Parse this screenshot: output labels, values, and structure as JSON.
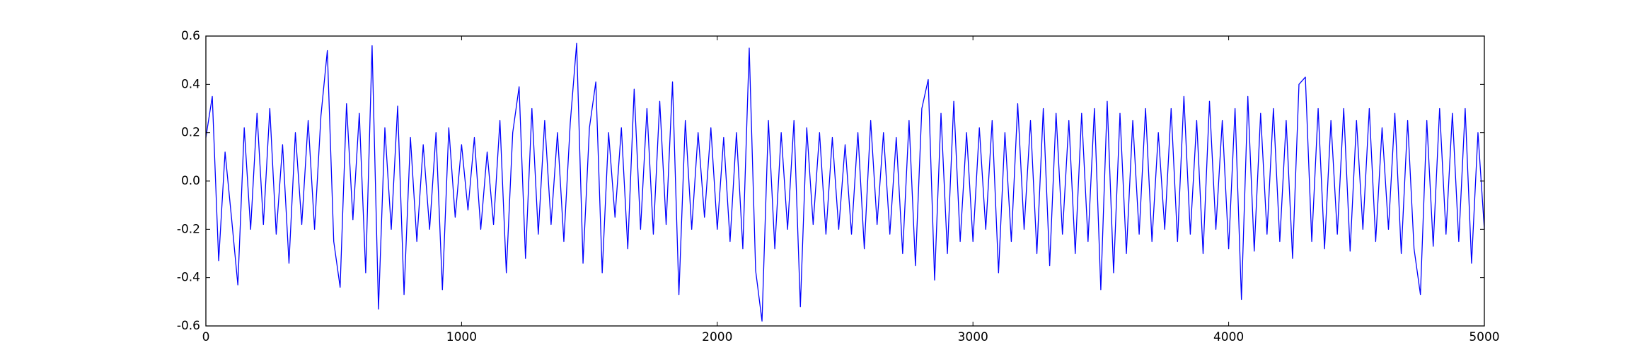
{
  "chart_data": {
    "type": "line",
    "x": [
      0,
      25,
      50,
      75,
      100,
      125,
      150,
      175,
      200,
      225,
      250,
      275,
      300,
      325,
      350,
      375,
      400,
      425,
      450,
      475,
      500,
      525,
      550,
      575,
      600,
      625,
      650,
      675,
      700,
      725,
      750,
      775,
      800,
      825,
      850,
      875,
      900,
      925,
      950,
      975,
      1000,
      1025,
      1050,
      1075,
      1100,
      1125,
      1150,
      1175,
      1200,
      1225,
      1250,
      1275,
      1300,
      1325,
      1350,
      1375,
      1400,
      1425,
      1450,
      1475,
      1500,
      1525,
      1550,
      1575,
      1600,
      1625,
      1650,
      1675,
      1700,
      1725,
      1750,
      1775,
      1800,
      1825,
      1850,
      1875,
      1900,
      1925,
      1950,
      1975,
      2000,
      2025,
      2050,
      2075,
      2100,
      2125,
      2150,
      2175,
      2200,
      2225,
      2250,
      2275,
      2300,
      2325,
      2350,
      2375,
      2400,
      2425,
      2450,
      2475,
      2500,
      2525,
      2550,
      2575,
      2600,
      2625,
      2650,
      2675,
      2700,
      2725,
      2750,
      2775,
      2800,
      2825,
      2850,
      2875,
      2900,
      2925,
      2950,
      2975,
      3000,
      3025,
      3050,
      3075,
      3100,
      3125,
      3150,
      3175,
      3200,
      3225,
      3250,
      3275,
      3300,
      3325,
      3350,
      3375,
      3400,
      3425,
      3450,
      3475,
      3500,
      3525,
      3550,
      3575,
      3600,
      3625,
      3650,
      3675,
      3700,
      3725,
      3750,
      3775,
      3800,
      3825,
      3850,
      3875,
      3900,
      3925,
      3950,
      3975,
      4000,
      4025,
      4050,
      4075,
      4100,
      4125,
      4150,
      4175,
      4200,
      4225,
      4250,
      4275,
      4300,
      4325,
      4350,
      4375,
      4400,
      4425,
      4450,
      4475,
      4500,
      4525,
      4550,
      4575,
      4600,
      4625,
      4650,
      4675,
      4700,
      4725,
      4750,
      4775,
      4800,
      4825,
      4850,
      4875,
      4900,
      4925,
      4950,
      4975,
      5000
    ],
    "series": [
      {
        "color": "#0000ff",
        "values": [
          0.18,
          0.35,
          -0.33,
          0.12,
          -0.15,
          -0.43,
          0.22,
          -0.2,
          0.28,
          -0.18,
          0.3,
          -0.22,
          0.15,
          -0.34,
          0.2,
          -0.18,
          0.25,
          -0.2,
          0.27,
          0.54,
          -0.25,
          -0.44,
          0.32,
          -0.16,
          0.28,
          -0.38,
          0.56,
          -0.53,
          0.22,
          -0.2,
          0.31,
          -0.47,
          0.18,
          -0.25,
          0.15,
          -0.2,
          0.2,
          -0.45,
          0.22,
          -0.15,
          0.15,
          -0.12,
          0.18,
          -0.2,
          0.12,
          -0.18,
          0.25,
          -0.38,
          0.2,
          0.39,
          -0.32,
          0.3,
          -0.22,
          0.25,
          -0.18,
          0.2,
          -0.25,
          0.24,
          0.57,
          -0.34,
          0.22,
          0.41,
          -0.38,
          0.2,
          -0.15,
          0.22,
          -0.28,
          0.38,
          -0.2,
          0.3,
          -0.22,
          0.33,
          -0.18,
          0.41,
          -0.47,
          0.25,
          -0.2,
          0.2,
          -0.15,
          0.22,
          -0.2,
          0.18,
          -0.25,
          0.2,
          -0.28,
          0.55,
          -0.37,
          -0.58,
          0.25,
          -0.28,
          0.2,
          -0.2,
          0.25,
          -0.52,
          0.22,
          -0.18,
          0.2,
          -0.22,
          0.18,
          -0.2,
          0.15,
          -0.22,
          0.2,
          -0.28,
          0.25,
          -0.18,
          0.2,
          -0.22,
          0.18,
          -0.3,
          0.25,
          -0.35,
          0.3,
          0.42,
          -0.41,
          0.28,
          -0.3,
          0.33,
          -0.25,
          0.2,
          -0.25,
          0.22,
          -0.2,
          0.25,
          -0.38,
          0.2,
          -0.25,
          0.32,
          -0.2,
          0.25,
          -0.3,
          0.3,
          -0.35,
          0.28,
          -0.22,
          0.25,
          -0.3,
          0.28,
          -0.25,
          0.3,
          -0.45,
          0.33,
          -0.38,
          0.28,
          -0.3,
          0.25,
          -0.22,
          0.3,
          -0.25,
          0.2,
          -0.2,
          0.3,
          -0.25,
          0.35,
          -0.22,
          0.25,
          -0.3,
          0.33,
          -0.2,
          0.25,
          -0.28,
          0.3,
          -0.49,
          0.35,
          -0.29,
          0.28,
          -0.22,
          0.3,
          -0.25,
          0.25,
          -0.32,
          0.4,
          0.43,
          -0.25,
          0.3,
          -0.28,
          0.25,
          -0.22,
          0.3,
          -0.29,
          0.25,
          -0.2,
          0.3,
          -0.25,
          0.22,
          -0.2,
          0.28,
          -0.3,
          0.25,
          -0.28,
          -0.47,
          0.25,
          -0.27,
          0.3,
          -0.22,
          0.28,
          -0.25,
          0.3,
          -0.34,
          0.2,
          -0.2
        ]
      }
    ],
    "xlim": [
      0,
      5000
    ],
    "xticks": [
      0,
      1000,
      2000,
      3000,
      4000,
      5000
    ],
    "ylim": [
      -0.6,
      0.6
    ],
    "yticks": [
      -0.6,
      -0.4,
      -0.2,
      {
        "value": 0,
        "label": "0.0"
      },
      0.2,
      0.4,
      0.6
    ],
    "grid": false
  }
}
